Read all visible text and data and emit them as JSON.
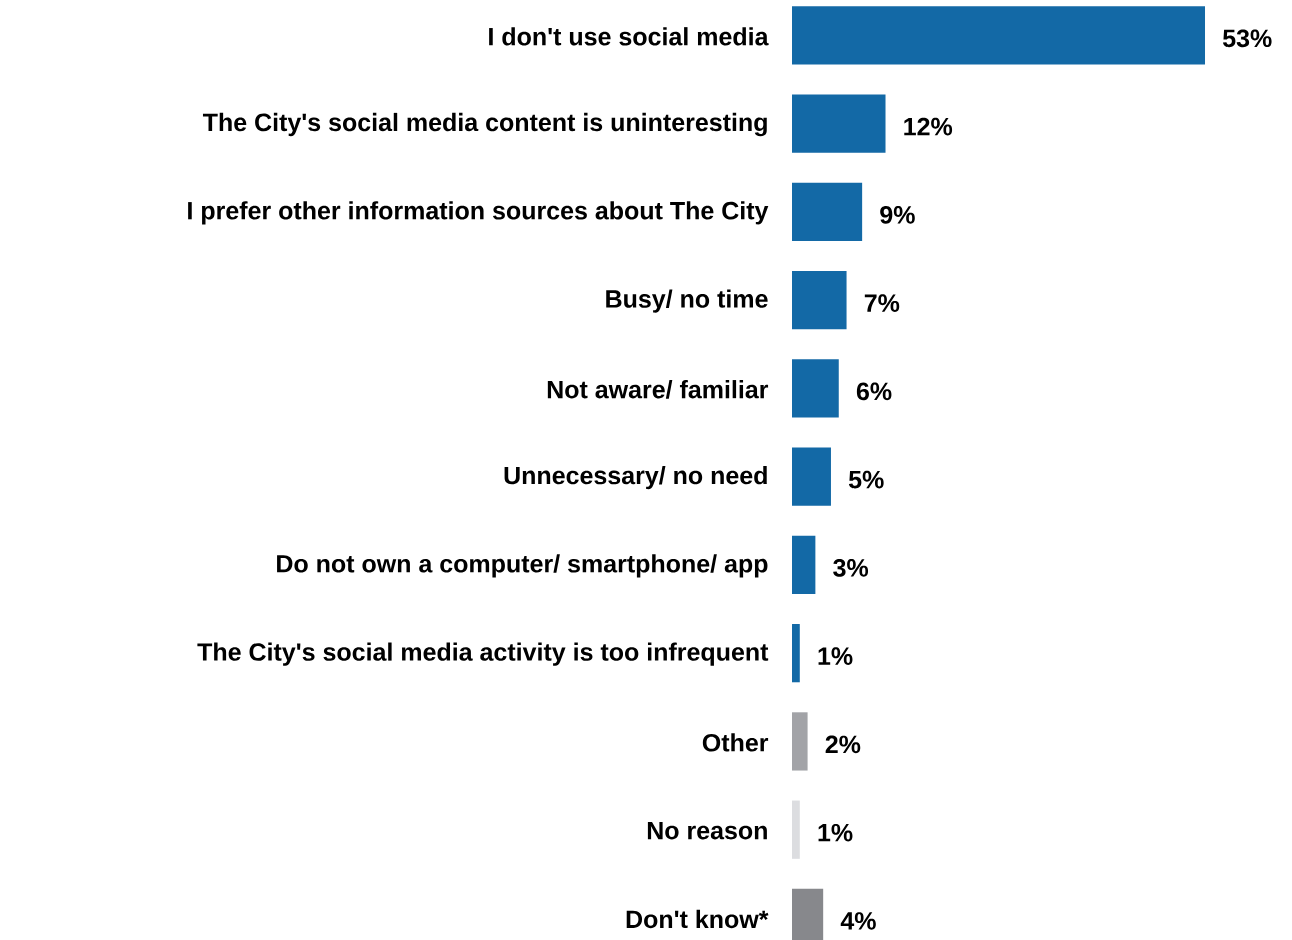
{
  "chart_data": {
    "type": "bar",
    "orientation": "horizontal",
    "categories": [
      "I don't use social media",
      "The City's social media content is uninteresting",
      "I prefer other information sources about The City",
      "Busy/ no time",
      "Not aware/ familiar",
      "Unnecessary/ no need",
      "Do not own a computer/ smartphone/ app",
      "The City's social media activity is too infrequent",
      "Other",
      "No reason",
      "Don't know*"
    ],
    "values": [
      53,
      12,
      9,
      7,
      6,
      5,
      3,
      1,
      2,
      1,
      4
    ],
    "value_labels": [
      "53%",
      "12%",
      "9%",
      "7%",
      "6%",
      "5%",
      "3%",
      "1%",
      "2%",
      "1%",
      "4%"
    ],
    "colors": [
      "#1369a6",
      "#1369a6",
      "#1369a6",
      "#1369a6",
      "#1369a6",
      "#1369a6",
      "#1369a6",
      "#1369a6",
      "#a2a3a7",
      "#dcdde0",
      "#87888c"
    ]
  }
}
